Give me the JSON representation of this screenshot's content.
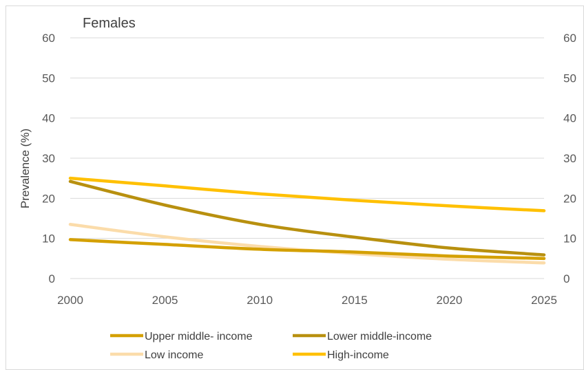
{
  "chart_data": {
    "type": "line",
    "title": "Females",
    "xlabel": "",
    "ylabel": "Prevalence (%)",
    "ylim": [
      0,
      60
    ],
    "xlim": [
      2000,
      2025
    ],
    "x_ticks": [
      "2000",
      "2005",
      "2010",
      "2015",
      "2020",
      "2025"
    ],
    "y_ticks": [
      "0",
      "10",
      "20",
      "30",
      "40",
      "50",
      "60"
    ],
    "right_y_ticks": [
      "0",
      "10",
      "20",
      "30",
      "40",
      "50",
      "60"
    ],
    "grid": "horizontal",
    "legend_position": "bottom",
    "x": [
      2000,
      2005,
      2010,
      2015,
      2020,
      2025
    ],
    "series": [
      {
        "name": "Upper middle- income",
        "color": "#d4a000",
        "values": [
          9.7,
          8.5,
          7.3,
          6.6,
          5.6,
          5.0
        ]
      },
      {
        "name": "Lower middle-income",
        "color": "#b8900f",
        "values": [
          24.2,
          18.3,
          13.5,
          10.3,
          7.6,
          5.9
        ]
      },
      {
        "name": "Low income",
        "color": "#fbdcaa",
        "values": [
          13.5,
          10.4,
          8.0,
          6.2,
          4.8,
          3.9
        ]
      },
      {
        "name": "High-income",
        "color": "#ffc000",
        "values": [
          25.0,
          23.1,
          21.1,
          19.5,
          18.1,
          16.9
        ]
      }
    ]
  }
}
